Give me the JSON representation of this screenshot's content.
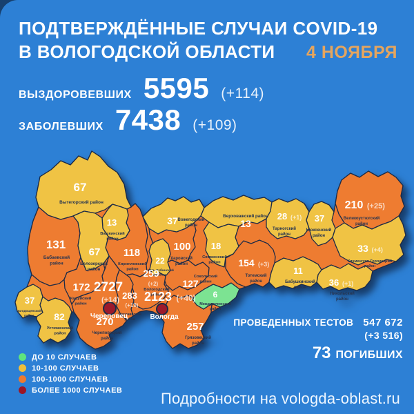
{
  "header": {
    "title_line1": "ПОДТВЕРЖДЁННЫЕ СЛУЧАИ COVID-19",
    "title_line2": "В ВОЛОГОДСКОЙ ОБЛАСТИ",
    "date": "4 НОЯБРЯ"
  },
  "summary": {
    "recovered_label": "ВЫЗДОРОВЕВШИХ",
    "recovered_value": "5595",
    "recovered_delta": "(+114)",
    "infected_label": "ЗАБОЛЕВШИХ",
    "infected_value": "7438",
    "infected_delta": "(+109)"
  },
  "tests": {
    "tests_label": "ПРОВЕДЕННЫХ ТЕСТОВ",
    "tests_value": "547 672",
    "tests_delta": "(+3 516)",
    "deaths_value": "73",
    "deaths_label": "ПОГИБШИХ"
  },
  "legend": [
    {
      "label": "ДО 10 СЛУЧАЕВ",
      "color": "#5fe37e"
    },
    {
      "label": "10-100 СЛУЧАЕВ",
      "color": "#f1bf3a"
    },
    {
      "label": "100-1000 СЛУЧАЕВ",
      "color": "#ee7a30"
    },
    {
      "label": "БОЛЕЕ 1000 СЛУЧАЕВ",
      "color": "#9c1626"
    }
  ],
  "footer": {
    "text": "Подробности на vologda-oblast.ru"
  },
  "map": {
    "category_colors": {
      "under10": "#7ce392",
      "c10_100": "#f0c344",
      "c100_1000": "#ee7c31",
      "over1000": "#9c1a2c"
    },
    "border_color": "#1d2b47",
    "districts": [
      {
        "id": "vytegorsky",
        "name": "Вытегорский район",
        "value": "67",
        "delta": "",
        "category": "c10_100"
      },
      {
        "id": "vashkinsky",
        "name": "Вашкинский район",
        "value": "13",
        "delta": "",
        "category": "c10_100"
      },
      {
        "id": "babaevsky",
        "name": "Бабаевский район",
        "value": "131",
        "delta": "",
        "category": "c100_1000"
      },
      {
        "id": "belozersky",
        "name": "Белозерский район",
        "value": "67",
        "delta": "",
        "category": "c10_100"
      },
      {
        "id": "kirillovsky",
        "name": "Кирилловский район",
        "value": "118",
        "delta": "",
        "category": "c100_1000"
      },
      {
        "id": "vozhegodsky",
        "name": "Вожегодский район",
        "value": "37",
        "delta": "",
        "category": "c10_100"
      },
      {
        "id": "verkhovazhsky",
        "name": "Верховажский район",
        "value": "13",
        "delta": "",
        "category": "c10_100"
      },
      {
        "id": "tarnogsky",
        "name": "Тарногский район",
        "value": "28",
        "delta": "(+1)",
        "category": "c10_100"
      },
      {
        "id": "nyuksensky",
        "name": "Нюксенский район",
        "value": "37",
        "delta": "",
        "category": "c10_100"
      },
      {
        "id": "velikoustyugsky",
        "name": "Великоустюгский район",
        "value": "210",
        "delta": "(+25)",
        "category": "c100_1000"
      },
      {
        "id": "kichmengsko",
        "name": "Кичменгско-Городецкий район",
        "value": "33",
        "delta": "(+4)",
        "category": "c10_100"
      },
      {
        "id": "nikolsky",
        "name": "Никольский район",
        "value": "36",
        "delta": "(+1)",
        "category": "c10_100"
      },
      {
        "id": "babushkinsky",
        "name": "Бабушкинский район",
        "value": "11",
        "delta": "",
        "category": "c10_100"
      },
      {
        "id": "totemsky",
        "name": "Тотемский район",
        "value": "154",
        "delta": "(+3)",
        "category": "c100_1000"
      },
      {
        "id": "syamzhensky",
        "name": "Сямженский район",
        "value": "18",
        "delta": "",
        "category": "c10_100"
      },
      {
        "id": "kharovsky",
        "name": "Харовский район",
        "value": "100",
        "delta": "",
        "category": "c100_1000"
      },
      {
        "id": "ustkubinsky",
        "name": "Усть-Кубинский район",
        "value": "22",
        "delta": "",
        "category": "c10_100"
      },
      {
        "id": "sokolsky",
        "name": "Сокольский район",
        "value": "127",
        "delta": "",
        "category": "c100_1000"
      },
      {
        "id": "vologodsky",
        "name": "Вологодский район",
        "value": "259",
        "delta": "(+2)",
        "category": "c100_1000"
      },
      {
        "id": "mezhdurechensky",
        "name": "Междуреченский район",
        "value": "6",
        "delta": "",
        "category": "under10"
      },
      {
        "id": "gryazovetsky",
        "name": "Грязовецкий район",
        "value": "257",
        "delta": "",
        "category": "c100_1000"
      },
      {
        "id": "sheksninsky",
        "name": "Шекснинский район",
        "value": "283",
        "delta": "(+19)",
        "category": "c100_1000"
      },
      {
        "id": "kaduysky",
        "name": "Кадуйский район",
        "value": "172",
        "delta": "",
        "category": "c100_1000"
      },
      {
        "id": "chagodoshchensky",
        "name": "Чагодощенский район",
        "value": "37",
        "delta": "",
        "category": "c10_100"
      },
      {
        "id": "ustyuzhensky",
        "name": "Устюженский район",
        "value": "82",
        "delta": "",
        "category": "c10_100"
      },
      {
        "id": "cherepovetsky",
        "name": "Череповецкий район",
        "value": "270",
        "delta": "",
        "category": "c100_1000"
      }
    ],
    "cities": [
      {
        "id": "cherepovets",
        "name": "Череповец",
        "value": "2727",
        "delta": "(+14)",
        "category": "over1000"
      },
      {
        "id": "vologda",
        "name": "Вологда",
        "value": "2123",
        "delta": "(+40)",
        "category": "over1000"
      }
    ]
  }
}
